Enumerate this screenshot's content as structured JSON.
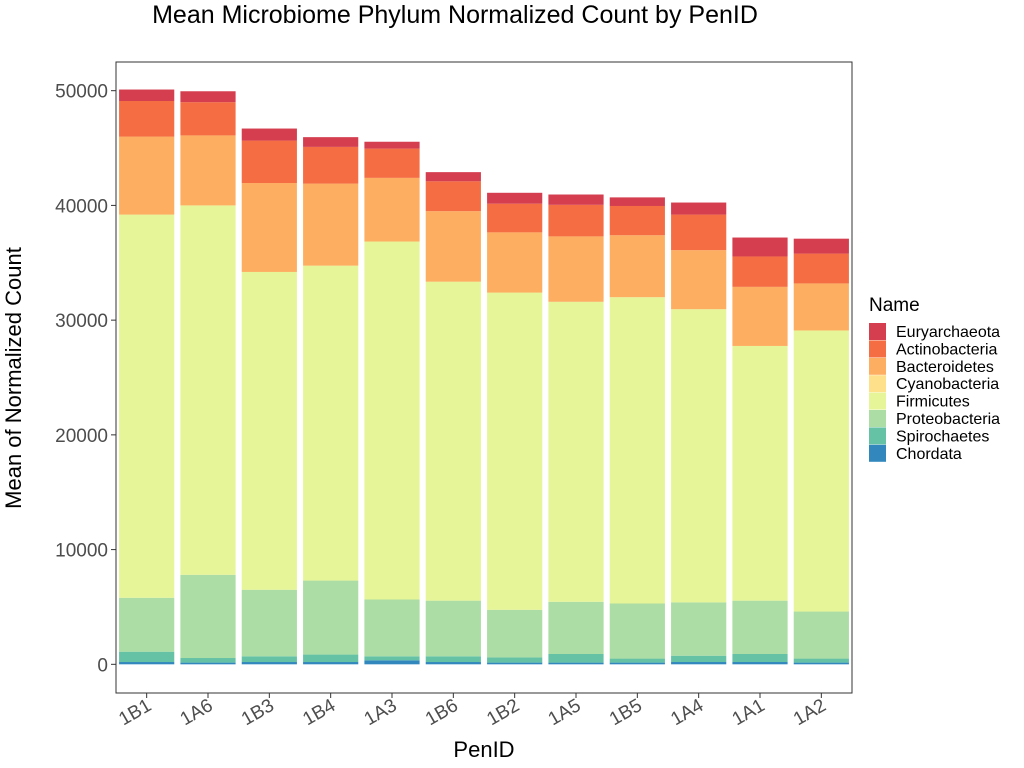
{
  "chart_data": {
    "type": "bar",
    "stacked": true,
    "title": "Mean Microbiome Phylum Normalized Count by PenID",
    "xlabel": "PenID",
    "ylabel": "Mean of Normalized Count",
    "ylim": [
      -2500,
      52500
    ],
    "yticks": [
      "0",
      "10000",
      "20000",
      "30000",
      "40000",
      "50000"
    ],
    "grid": false,
    "legend_title": "Name",
    "legend_position": "right",
    "categories": [
      "1B1",
      "1A6",
      "1B3",
      "1B4",
      "1A3",
      "1B6",
      "1B2",
      "1A5",
      "1B5",
      "1A4",
      "1A1",
      "1A2"
    ],
    "series": [
      {
        "name": "Chordata",
        "color": "#3288bd",
        "values": [
          200,
          150,
          200,
          200,
          350,
          200,
          150,
          150,
          150,
          200,
          200,
          150
        ]
      },
      {
        "name": "Spirochaetes",
        "color": "#66c2a5",
        "values": [
          900,
          400,
          500,
          650,
          350,
          500,
          450,
          750,
          350,
          550,
          700,
          350
        ]
      },
      {
        "name": "Proteobacteria",
        "color": "#abdda4",
        "values": [
          4700,
          7250,
          5800,
          6450,
          4950,
          4850,
          4150,
          4550,
          4800,
          4650,
          4650,
          4100
        ]
      },
      {
        "name": "Firmicutes",
        "color": "#e6f598",
        "values": [
          33400,
          32200,
          27700,
          27450,
          31200,
          27800,
          27650,
          26150,
          26700,
          25550,
          22200,
          24500
        ]
      },
      {
        "name": "Cyanobacteria",
        "color": "#fee08b",
        "values": [
          0,
          0,
          0,
          0,
          0,
          0,
          0,
          0,
          0,
          0,
          0,
          0
        ]
      },
      {
        "name": "Bacteroidetes",
        "color": "#fdae61",
        "values": [
          6800,
          6100,
          7750,
          7150,
          5550,
          6150,
          5250,
          5700,
          5400,
          5150,
          5150,
          4100
        ]
      },
      {
        "name": "Actinobacteria",
        "color": "#f46d43",
        "values": [
          3100,
          2900,
          3700,
          3200,
          2550,
          2600,
          2500,
          2750,
          2550,
          3100,
          2650,
          2600
        ]
      },
      {
        "name": "Euryarchaeota",
        "color": "#d53e4f",
        "values": [
          1000,
          950,
          1050,
          850,
          600,
          800,
          950,
          900,
          750,
          1050,
          1650,
          1300
        ]
      }
    ],
    "legend_order": [
      "Euryarchaeota",
      "Actinobacteria",
      "Bacteroidetes",
      "Cyanobacteria",
      "Firmicutes",
      "Proteobacteria",
      "Spirochaetes",
      "Chordata"
    ]
  }
}
